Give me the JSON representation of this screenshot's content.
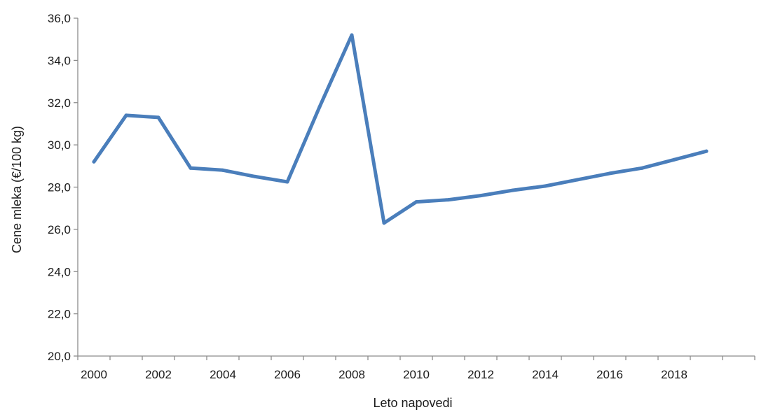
{
  "chart_data": {
    "type": "line",
    "title": "",
    "xlabel": "Leto napovedi",
    "ylabel": "Cene mleka (€/100 kg)",
    "xlim": [
      1999.5,
      2020.5
    ],
    "ylim": [
      20.0,
      36.0
    ],
    "x_ticks": [
      2000,
      2002,
      2004,
      2006,
      2008,
      2010,
      2012,
      2014,
      2016,
      2018
    ],
    "y_ticks": [
      "20,0",
      "22,0",
      "24,0",
      "26,0",
      "28,0",
      "30,0",
      "32,0",
      "34,0",
      "36,0"
    ],
    "grid": false,
    "legend": "none",
    "series": [
      {
        "color": "#4a7ebb",
        "points": [
          {
            "x": 2000,
            "y": 29.2
          },
          {
            "x": 2001,
            "y": 31.4
          },
          {
            "x": 2002,
            "y": 31.3
          },
          {
            "x": 2003,
            "y": 28.9
          },
          {
            "x": 2004,
            "y": 28.8
          },
          {
            "x": 2005,
            "y": 28.5
          },
          {
            "x": 2006,
            "y": 28.25
          },
          {
            "x": 2007,
            "y": 31.8
          },
          {
            "x": 2008,
            "y": 35.2
          },
          {
            "x": 2009,
            "y": 26.3
          },
          {
            "x": 2010,
            "y": 27.3
          },
          {
            "x": 2011,
            "y": 27.4
          },
          {
            "x": 2012,
            "y": 27.6
          },
          {
            "x": 2013,
            "y": 27.85
          },
          {
            "x": 2014,
            "y": 28.05
          },
          {
            "x": 2015,
            "y": 28.35
          },
          {
            "x": 2016,
            "y": 28.65
          },
          {
            "x": 2017,
            "y": 28.9
          },
          {
            "x": 2018,
            "y": 29.3
          },
          {
            "x": 2019,
            "y": 29.7
          }
        ]
      }
    ]
  }
}
